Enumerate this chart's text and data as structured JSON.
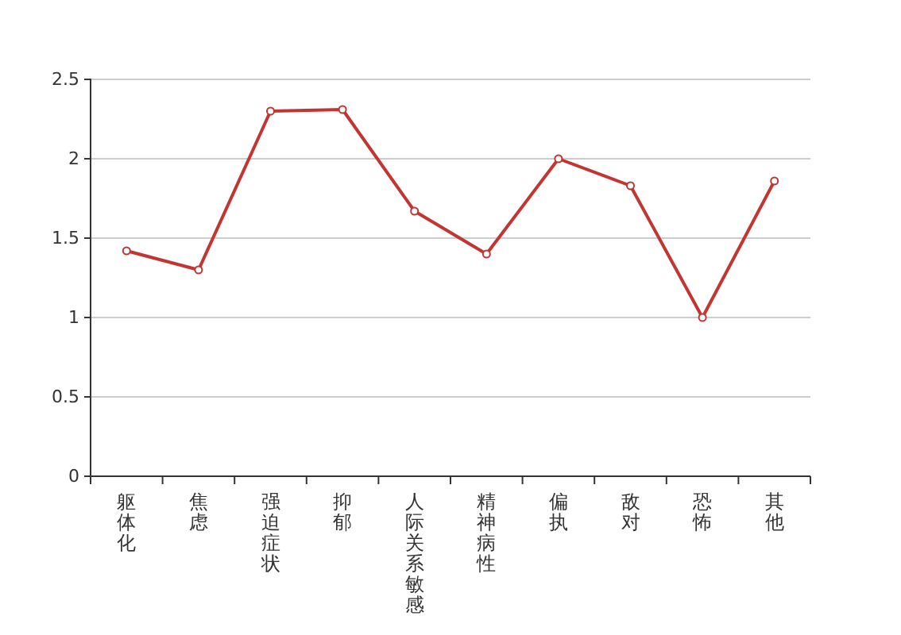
{
  "chart_data": {
    "type": "line",
    "categories": [
      "躯体化",
      "焦虑",
      "强迫症状",
      "抑郁",
      "人际关系敏感",
      "精神病性",
      "偏执",
      "敌对",
      "恐怖",
      "其他"
    ],
    "series": [
      {
        "color": "#c23531",
        "values": [
          1.42,
          1.3,
          2.3,
          2.31,
          1.67,
          1.4,
          2.0,
          1.83,
          1.0,
          1.86
        ]
      }
    ],
    "ylim": [
      0,
      2.5
    ],
    "yticks": [
      0,
      0.5,
      1,
      1.5,
      2,
      2.5
    ],
    "grid": "y",
    "marker": "circle",
    "line_style": "solid",
    "legend": false
  }
}
